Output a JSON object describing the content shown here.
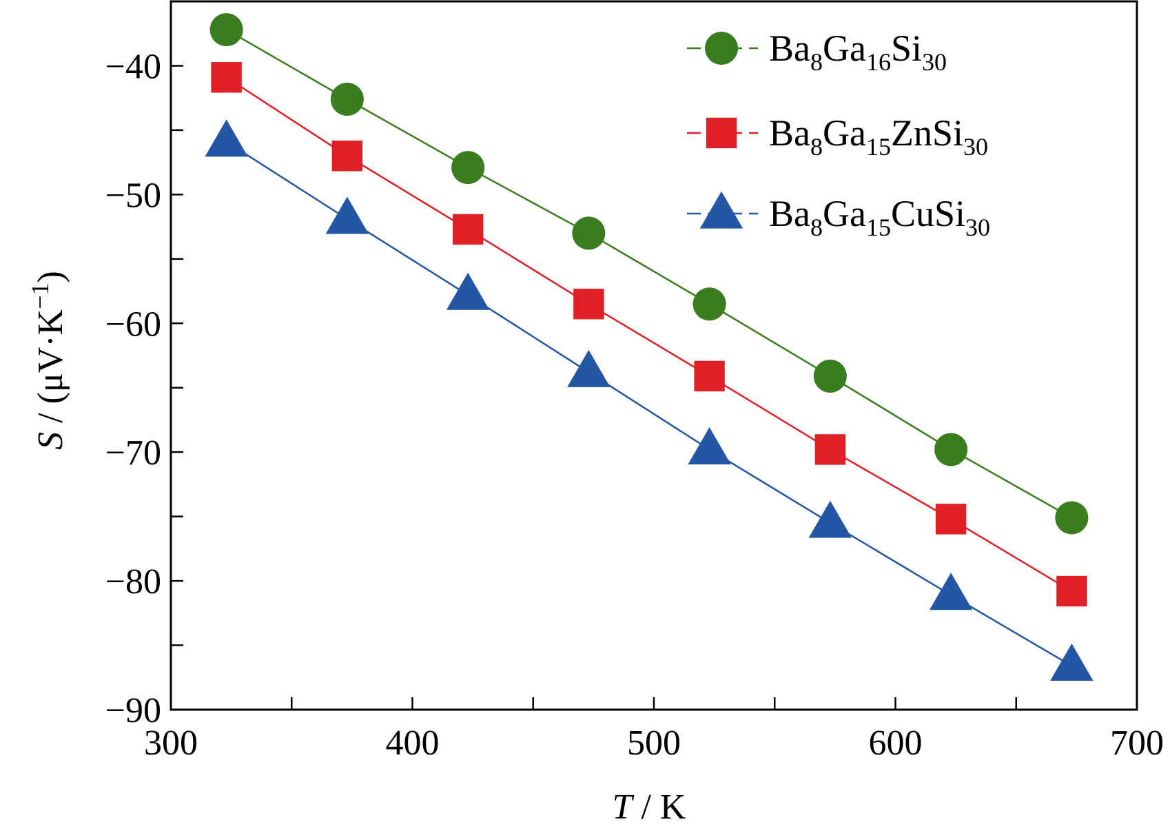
{
  "chart_data": {
    "type": "line",
    "title": "",
    "xlabel": {
      "symbol": "T",
      "rest": " / K"
    },
    "ylabel": {
      "symbol": "S",
      "rest": " / (μV·K",
      "sup": "−1",
      "close": ")"
    },
    "xlim": [
      300,
      700
    ],
    "ylim": [
      -90,
      -35
    ],
    "x_ticks": [
      300,
      400,
      500,
      600,
      700
    ],
    "x_tick_labels": [
      "300",
      "400",
      "500",
      "600",
      "700"
    ],
    "y_ticks": [
      -90,
      -80,
      -70,
      -60,
      -50,
      -40
    ],
    "y_tick_labels": [
      "−90",
      "−80",
      "−70",
      "−60",
      "−50",
      "−40"
    ],
    "legend_position": "top-right",
    "grid": false,
    "series": [
      {
        "name": "Ba8Ga16Si30",
        "label_parts": [
          [
            "Ba",
            ""
          ],
          [
            "8",
            "sub"
          ],
          [
            "Ga",
            ""
          ],
          [
            "16",
            "sub"
          ],
          [
            "Si",
            ""
          ],
          [
            "30",
            "sub"
          ]
        ],
        "marker": "circle",
        "color": "#3a7d1e",
        "x": [
          323,
          373,
          423,
          473,
          523,
          573,
          623,
          673
        ],
        "y": [
          -37.2,
          -42.6,
          -47.9,
          -53.0,
          -58.5,
          -64.1,
          -69.8,
          -75.1
        ]
      },
      {
        "name": "Ba8Ga15ZnSi30",
        "label_parts": [
          [
            "Ba",
            ""
          ],
          [
            "8",
            "sub"
          ],
          [
            "Ga",
            ""
          ],
          [
            "15",
            "sub"
          ],
          [
            "ZnSi",
            ""
          ],
          [
            "30",
            "sub"
          ]
        ],
        "marker": "square",
        "color": "#e11f26",
        "x": [
          323,
          373,
          423,
          473,
          523,
          573,
          623,
          673
        ],
        "y": [
          -40.9,
          -47.0,
          -52.7,
          -58.5,
          -64.1,
          -69.8,
          -75.2,
          -80.8
        ]
      },
      {
        "name": "Ba8Ga15CuSi30",
        "label_parts": [
          [
            "Ba",
            ""
          ],
          [
            "8",
            "sub"
          ],
          [
            "Ga",
            ""
          ],
          [
            "15",
            "sub"
          ],
          [
            "CuSi",
            ""
          ],
          [
            "30",
            "sub"
          ]
        ],
        "marker": "triangle",
        "color": "#2456a6",
        "x": [
          323,
          373,
          423,
          473,
          523,
          573,
          623,
          673
        ],
        "y": [
          -45.9,
          -51.9,
          -57.8,
          -63.8,
          -69.8,
          -75.5,
          -81.1,
          -86.6
        ]
      }
    ]
  }
}
